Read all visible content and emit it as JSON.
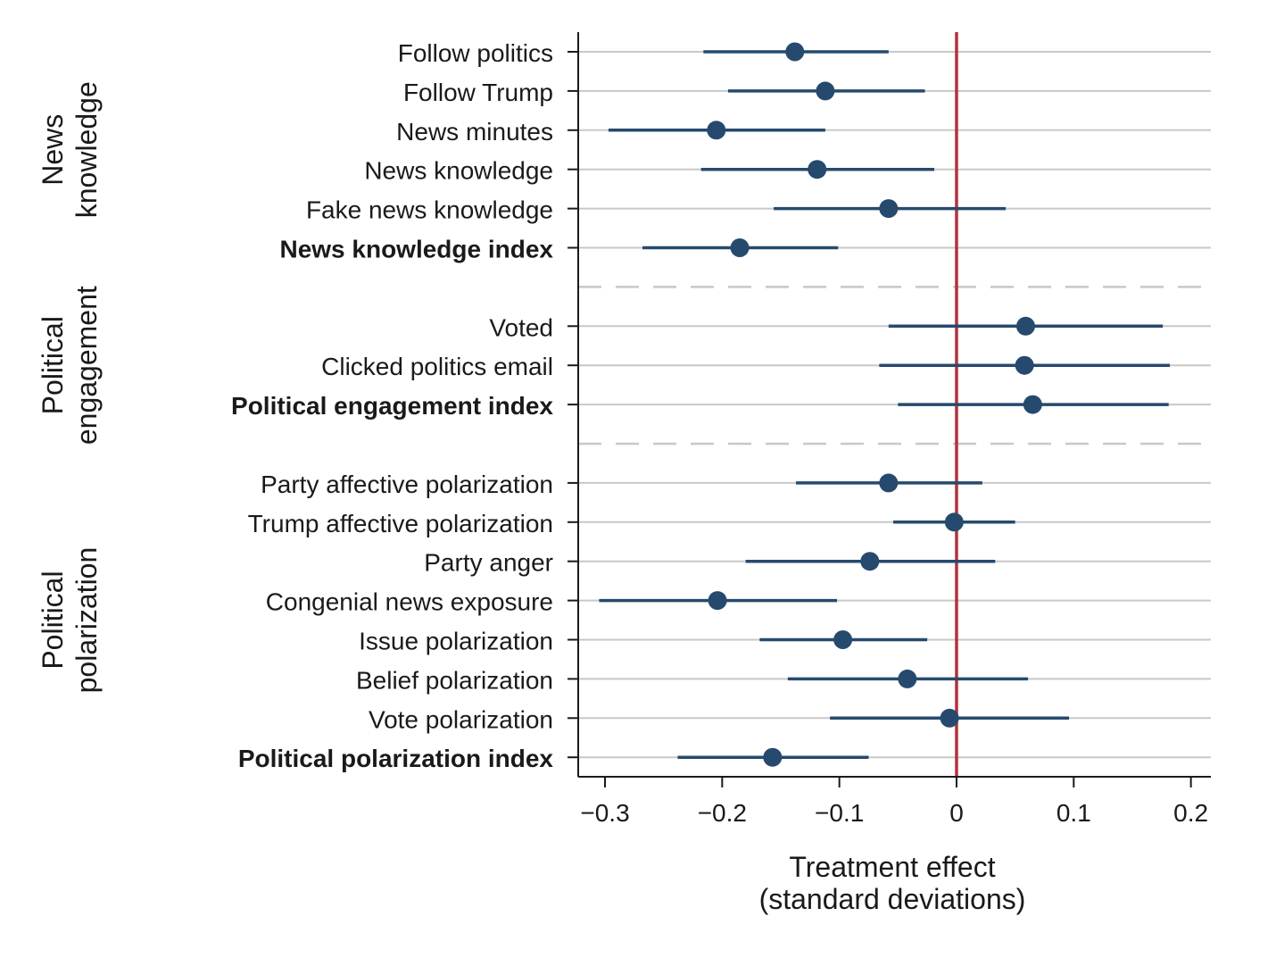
{
  "chart_data": {
    "type": "scatter",
    "subtype": "coefficient-plot",
    "title": "",
    "xlabel_line1": "Treatment effect",
    "xlabel_line2": "(standard deviations)",
    "xlim": [
      -0.322,
      0.218
    ],
    "x_ticks": [
      -0.3,
      -0.2,
      -0.1,
      0,
      0.1,
      0.2
    ],
    "x_tick_labels": [
      "−0.3",
      "−0.2",
      "−0.1",
      "0",
      "0.1",
      "0.2"
    ],
    "reference_line": 0,
    "grid": true,
    "colors": {
      "point": "#264a6e",
      "reference": "#b3323c",
      "grid": "#c8c8c8",
      "axis": "#1a1a1a"
    },
    "groups": [
      {
        "label_line1": "News",
        "label_line2": "knowledge",
        "rows": [
          {
            "label": "Follow politics",
            "estimate": -0.138,
            "ci_low": -0.216,
            "ci_high": -0.058,
            "bold": false
          },
          {
            "label": "Follow Trump",
            "estimate": -0.112,
            "ci_low": -0.195,
            "ci_high": -0.027,
            "bold": false
          },
          {
            "label": "News minutes",
            "estimate": -0.205,
            "ci_low": -0.297,
            "ci_high": -0.112,
            "bold": false
          },
          {
            "label": "News knowledge",
            "estimate": -0.119,
            "ci_low": -0.218,
            "ci_high": -0.019,
            "bold": false
          },
          {
            "label": "Fake news knowledge",
            "estimate": -0.058,
            "ci_low": -0.156,
            "ci_high": 0.042,
            "bold": false
          },
          {
            "label": "News knowledge index",
            "estimate": -0.185,
            "ci_low": -0.268,
            "ci_high": -0.101,
            "bold": true
          }
        ]
      },
      {
        "label_line1": "Political",
        "label_line2": "engagement",
        "rows": [
          {
            "label": "Voted",
            "estimate": 0.059,
            "ci_low": -0.058,
            "ci_high": 0.176,
            "bold": false
          },
          {
            "label": "Clicked politics email",
            "estimate": 0.058,
            "ci_low": -0.066,
            "ci_high": 0.182,
            "bold": false
          },
          {
            "label": "Political engagement index",
            "estimate": 0.065,
            "ci_low": -0.05,
            "ci_high": 0.181,
            "bold": true
          }
        ]
      },
      {
        "label_line1": "Political",
        "label_line2": "polarization",
        "rows": [
          {
            "label": "Party affective polarization",
            "estimate": -0.058,
            "ci_low": -0.137,
            "ci_high": 0.022,
            "bold": false
          },
          {
            "label": "Trump affective polarization",
            "estimate": -0.002,
            "ci_low": -0.054,
            "ci_high": 0.05,
            "bold": false
          },
          {
            "label": "Party anger",
            "estimate": -0.074,
            "ci_low": -0.18,
            "ci_high": 0.033,
            "bold": false
          },
          {
            "label": "Congenial news exposure",
            "estimate": -0.204,
            "ci_low": -0.305,
            "ci_high": -0.102,
            "bold": false
          },
          {
            "label": "Issue polarization",
            "estimate": -0.097,
            "ci_low": -0.168,
            "ci_high": -0.025,
            "bold": false
          },
          {
            "label": "Belief polarization",
            "estimate": -0.042,
            "ci_low": -0.144,
            "ci_high": 0.061,
            "bold": false
          },
          {
            "label": "Vote polarization",
            "estimate": -0.006,
            "ci_low": -0.108,
            "ci_high": 0.096,
            "bold": false
          },
          {
            "label": "Political polarization index",
            "estimate": -0.157,
            "ci_low": -0.238,
            "ci_high": -0.075,
            "bold": true
          }
        ]
      }
    ]
  }
}
